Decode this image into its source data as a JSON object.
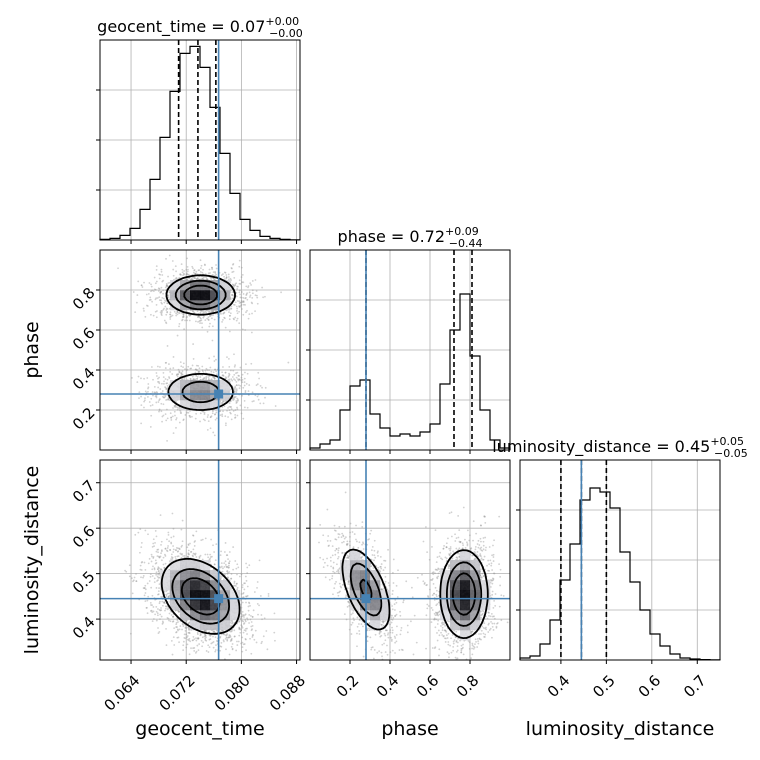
{
  "chart_data": {
    "type": "corner",
    "grid": true,
    "truth_color": "#4682b4",
    "parameters": [
      {
        "name": "geocent_time",
        "label": "geocent_time",
        "title_prefix": "geocent_time = ",
        "median": "0.07",
        "plus": "+0.00",
        "minus": "−0.00",
        "range": [
          0.0595,
          0.0885
        ],
        "ticks": [
          0.064,
          0.072,
          0.08,
          0.088
        ],
        "tick_labels": [
          "0.064",
          "0.072",
          "0.080",
          "0.088"
        ],
        "truth": 0.0767,
        "quantiles": [
          0.0709,
          0.0737,
          0.0763
        ],
        "hist": {
          "edges_start": 0.0595,
          "bin_width": 0.00145,
          "counts": [
            0.3,
            0.8,
            2.3,
            5.8,
            15.3,
            30.3,
            51.3,
            74.3,
            93.3,
            96.8,
            86.3,
            66.3,
            43.3,
            23.3,
            10.3,
            4.8,
            1.8,
            0.8,
            0.3,
            0.1
          ],
          "ymax": 100
        }
      },
      {
        "name": "phase",
        "label": "phase",
        "title_prefix": "phase = ",
        "median": "0.72",
        "plus": "+0.09",
        "minus": "−0.44",
        "range": [
          0.0,
          1.0
        ],
        "ticks": [
          0.2,
          0.4,
          0.6,
          0.8
        ],
        "tick_labels": [
          "0.2",
          "0.4",
          "0.6",
          "0.8"
        ],
        "truth": 0.28,
        "quantiles": [
          0.28,
          0.72,
          0.81
        ],
        "hist": {
          "edges_start": 0.0,
          "bin_width": 0.05,
          "counts": [
            1,
            3,
            5,
            20,
            32,
            35,
            18,
            11,
            7,
            8,
            7,
            9,
            13,
            33,
            60,
            78,
            47,
            20,
            5,
            1
          ],
          "ymax": 100
        }
      },
      {
        "name": "luminosity_distance",
        "label": "luminosity_distance",
        "title_prefix": "luminosity_distance = ",
        "median": "0.45",
        "plus": "+0.05",
        "minus": "−0.05",
        "range": [
          0.31,
          0.75
        ],
        "ticks": [
          0.4,
          0.5,
          0.6,
          0.7
        ],
        "tick_labels": [
          "0.4",
          "0.5",
          "0.6",
          "0.7"
        ],
        "truth": 0.445,
        "quantiles": [
          0.4,
          0.445,
          0.5
        ],
        "hist": {
          "edges_start": 0.31,
          "bin_width": 0.022,
          "counts": [
            1,
            2,
            8,
            20,
            40,
            58,
            80,
            86,
            84,
            76,
            54,
            39,
            25,
            13,
            7,
            3,
            1,
            0.5,
            0.2,
            0.1
          ],
          "ymax": 100
        }
      }
    ],
    "density_2d": [
      {
        "x": "geocent_time",
        "y": "phase",
        "modes": [
          {
            "cx": 0.0741,
            "cy": 0.775,
            "sx": 0.0023,
            "sy": 0.045,
            "w": 0.62,
            "rho": 0.0
          },
          {
            "cx": 0.0741,
            "cy": 0.29,
            "sx": 0.0026,
            "sy": 0.05,
            "w": 0.38,
            "rho": 0.0
          }
        ]
      },
      {
        "x": "geocent_time",
        "y": "luminosity_distance",
        "modes": [
          {
            "cx": 0.0741,
            "cy": 0.45,
            "sx": 0.0026,
            "sy": 0.038,
            "w": 1.0,
            "rho": -0.35
          }
        ]
      },
      {
        "x": "phase",
        "y": "luminosity_distance",
        "modes": [
          {
            "cx": 0.28,
            "cy": 0.465,
            "sx": 0.06,
            "sy": 0.045,
            "w": 0.38,
            "rho": -0.55
          },
          {
            "cx": 0.77,
            "cy": 0.455,
            "sx": 0.055,
            "sy": 0.045,
            "w": 0.62,
            "rho": 0.0
          }
        ]
      }
    ]
  }
}
